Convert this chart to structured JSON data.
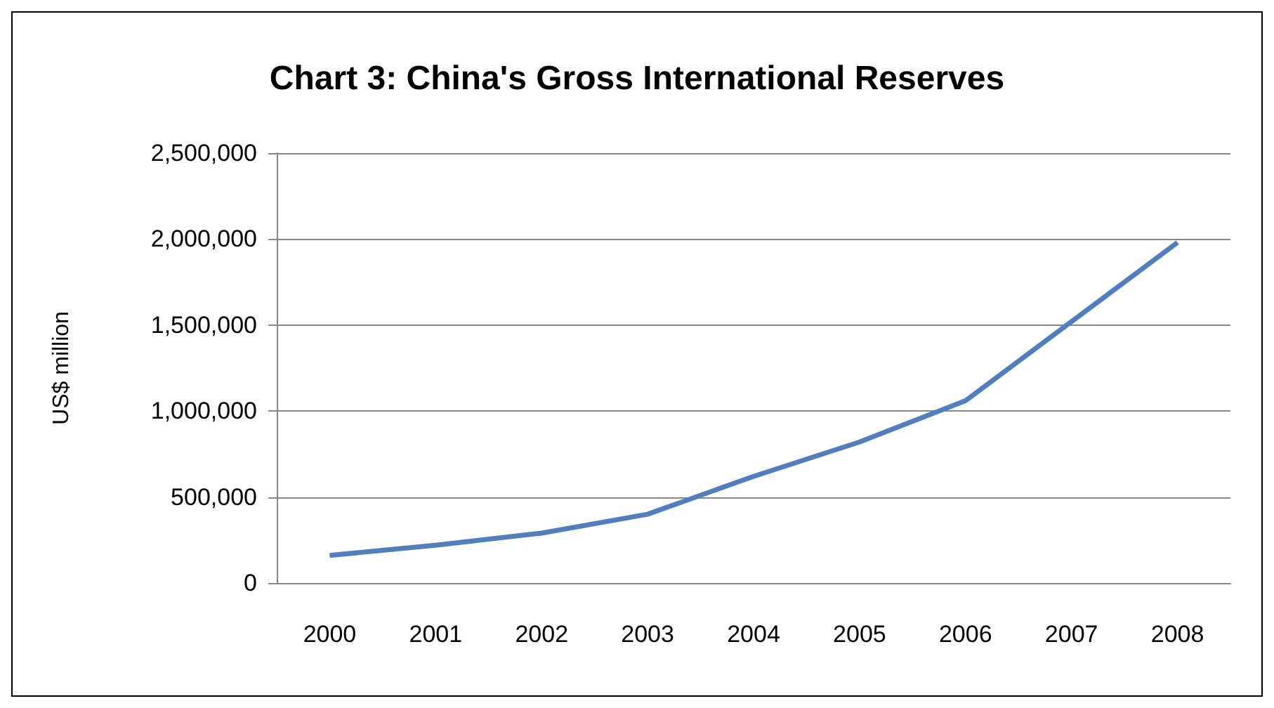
{
  "chart_data": {
    "type": "line",
    "title": "Chart 3: China's Gross International Reserves",
    "ylabel": "US$ million",
    "categories": [
      "2000",
      "2001",
      "2002",
      "2003",
      "2004",
      "2005",
      "2006",
      "2007",
      "2008"
    ],
    "series": [
      {
        "color": "#4f7fbf",
        "values": [
          160000,
          220000,
          290000,
          400000,
          620000,
          820000,
          1060000,
          1520000,
          1980000
        ]
      }
    ],
    "ylim": [
      0,
      2500000
    ],
    "yticks": [
      0,
      {
        "value": 500000,
        "label": "500,000"
      },
      {
        "value": 1000000,
        "label": "1,000,000"
      },
      {
        "value": 1500000,
        "label": "1,500,000"
      },
      {
        "value": 2000000,
        "label": "2,000,000"
      },
      {
        "value": 2500000,
        "label": "2,500,000"
      }
    ],
    "grid": "y",
    "marker": "none",
    "line_style": "solid"
  }
}
